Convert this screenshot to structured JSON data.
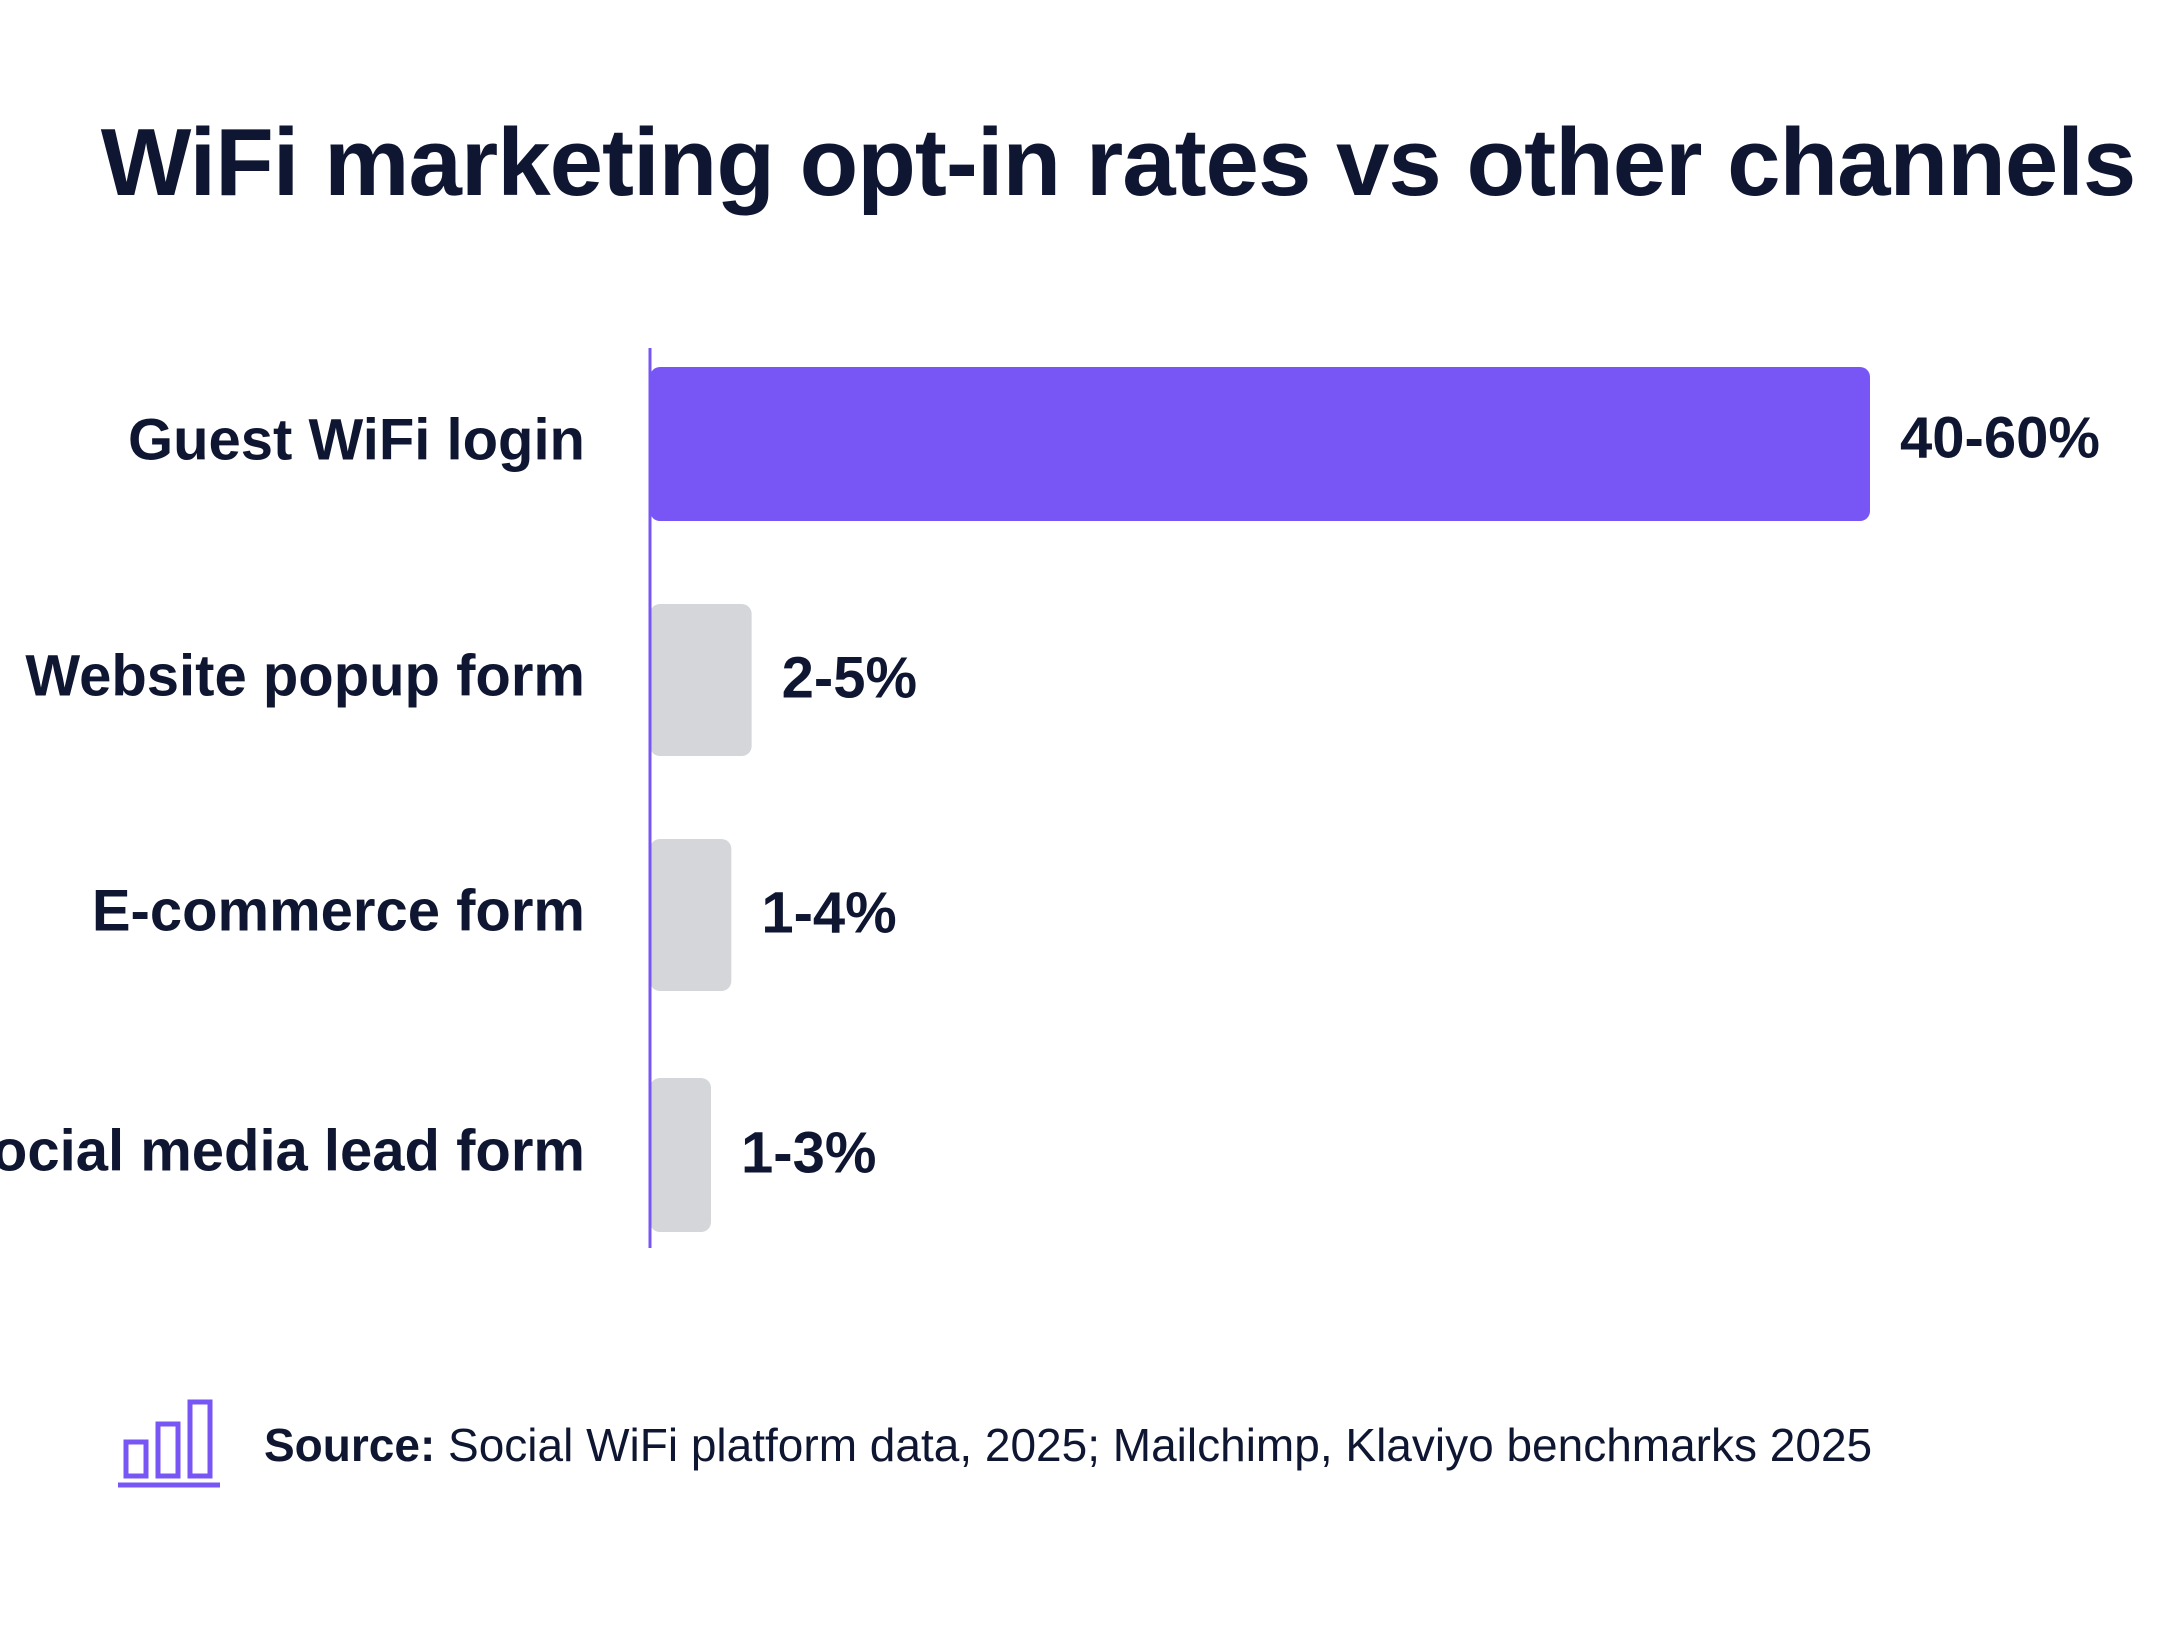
{
  "chart_data": {
    "type": "bar",
    "orientation": "horizontal",
    "title": "WiFi marketing opt-in rates vs other channels",
    "categories": [
      "Guest WiFi login",
      "Website popup form",
      "E-commerce form",
      "Social media lead form"
    ],
    "values": [
      60,
      5,
      4,
      3
    ],
    "value_labels": [
      "40-60%",
      "2-5%",
      "1-4%",
      "1-3%"
    ],
    "xlim": [
      0,
      60
    ],
    "grid": false,
    "legend": "none",
    "colors": {
      "highlight": "#7856f6",
      "default": "#d5d6da",
      "axis": "#7856f6",
      "text": "#0f1631"
    }
  },
  "source": {
    "label": "Source:",
    "text": "Social WiFi platform data, 2025; Mailchimp, Klaviyo benchmarks 2025",
    "icon": "bar-chart-icon"
  }
}
